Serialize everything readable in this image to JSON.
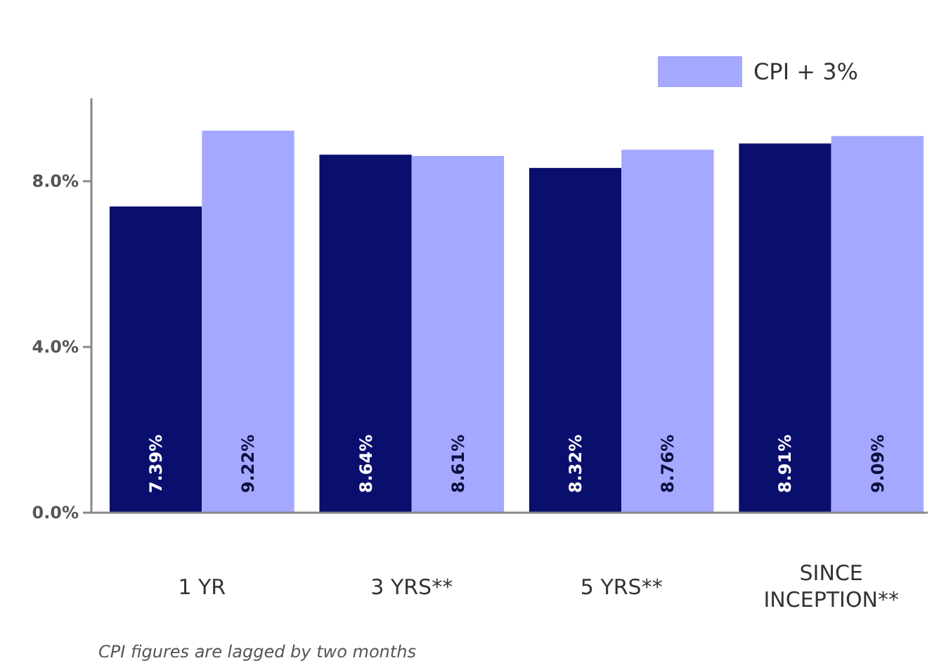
{
  "chart_data": {
    "type": "bar",
    "categories": [
      "1 YR",
      "3 YRS**",
      "5 YRS**",
      "SINCE INCEPTION**"
    ],
    "series": [
      {
        "color": "#0a0f6e",
        "values": [
          7.39,
          8.64,
          8.32,
          8.91
        ],
        "value_labels": [
          "7.39%",
          "8.64%",
          "8.32%",
          "8.91%"
        ]
      },
      {
        "name": "CPI + 3%",
        "color": "#a5a8ff",
        "values": [
          9.22,
          8.61,
          8.76,
          9.09
        ],
        "value_labels": [
          "9.22%",
          "8.61%",
          "8.76%",
          "9.09%"
        ]
      }
    ],
    "ylim": [
      0,
      10
    ],
    "yticks": [
      {
        "value": 0,
        "label": "0.0%"
      },
      {
        "value": 4,
        "label": "4.0%"
      },
      {
        "value": 8,
        "label": "8.0%"
      }
    ],
    "grid": false,
    "legend": "top right",
    "annotations": [
      "CPI figures are lagged by two months"
    ]
  }
}
